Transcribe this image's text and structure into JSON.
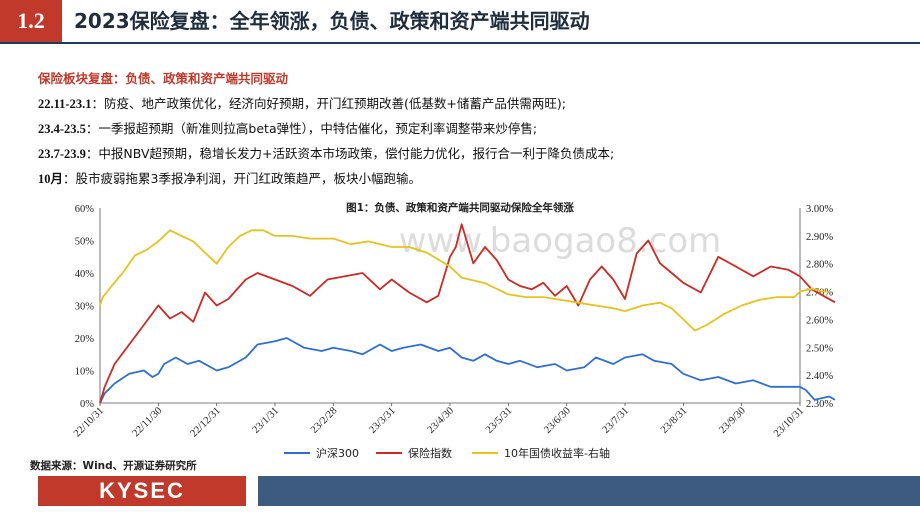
{
  "header": {
    "section_number": "1.2",
    "title": "2023保险复盘：全年领涨，负债、政策和资产端共同驱动"
  },
  "intro": {
    "lead": "保险板块复盘：负债、政策和资产端共同驱动",
    "rows": [
      {
        "period": "22.11-23.1",
        "text": "：防疫、地产政策优化，经济向好预期，开门红预期改善(低基数+储蓄产品供需两旺);"
      },
      {
        "period": "23.4-23.5",
        "text": "：一季报超预期（新准则拉高beta弹性），中特估催化，预定利率调整带来炒停售;"
      },
      {
        "period": "23.7-23.9",
        "text": "：中报NBV超预期，稳增长发力+活跃资本市场政策，偿付能力优化，报行合一利于降负债成本;"
      },
      {
        "period": "10月",
        "text": "：股市疲弱拖累3季报净利润，开门红政策趋严，板块小幅跑输。"
      }
    ]
  },
  "watermark": "www.baogao8.com",
  "source": "数据来源：Wind、开源证券研究所",
  "footer": {
    "logo": "KYSEC"
  },
  "colors": {
    "hs300": "#2e6fd1",
    "insurance": "#cc2a22",
    "bond": "#e8c21a",
    "accent": "#c0392b",
    "navy": "#3d5a80"
  },
  "chart_data": {
    "type": "line",
    "title": "图1：负债、政策和资产端共同驱动保险全年领涨",
    "x_tick_labels": [
      "22/10/31",
      "22/11/30",
      "22/12/31",
      "23/1/31",
      "23/2/28",
      "23/3/31",
      "23/4/30",
      "23/5/31",
      "23/6/30",
      "23/7/31",
      "23/8/31",
      "23/9/30",
      "23/10/31"
    ],
    "y_left": {
      "ticks": [
        "0%",
        "10%",
        "20%",
        "30%",
        "40%",
        "50%",
        "60%"
      ],
      "range": [
        0,
        60
      ]
    },
    "y_right": {
      "ticks": [
        "2.30%",
        "2.40%",
        "2.50%",
        "2.60%",
        "2.70%",
        "2.80%",
        "2.90%",
        "3.00%"
      ],
      "range": [
        2.3,
        3.0
      ],
      "label": "右轴"
    },
    "legend": [
      "沪深300",
      "保险指数",
      "10年国债收益率-右轴"
    ],
    "legend_position": "bottom",
    "series": [
      {
        "name": "沪深300",
        "axis": "left",
        "x": [
          0,
          0.08,
          0.25,
          0.5,
          0.75,
          0.9,
          1,
          1.1,
          1.3,
          1.5,
          1.7,
          2,
          2.2,
          2.5,
          2.7,
          3,
          3.2,
          3.5,
          3.8,
          4,
          4.3,
          4.5,
          4.8,
          5,
          5.2,
          5.5,
          5.8,
          6,
          6.2,
          6.4,
          6.6,
          6.8,
          7,
          7.2,
          7.5,
          7.8,
          8,
          8.3,
          8.5,
          8.8,
          9,
          9.3,
          9.5,
          9.8,
          10,
          10.3,
          10.6,
          10.9,
          11.2,
          11.5,
          11.8,
          12,
          12.1,
          12.25,
          12.5,
          12.6
        ],
        "y": [
          0,
          3,
          6,
          9,
          10,
          8,
          9,
          12,
          14,
          12,
          13,
          10,
          11,
          14,
          18,
          19,
          20,
          17,
          16,
          17,
          16,
          15,
          18,
          16,
          17,
          18,
          16,
          17,
          14,
          13,
          15,
          13,
          12,
          13,
          11,
          12,
          10,
          11,
          14,
          12,
          14,
          15,
          13,
          12,
          9,
          7,
          8,
          6,
          7,
          5,
          5,
          5,
          4,
          1,
          2,
          1
        ]
      },
      {
        "name": "保险指数",
        "axis": "left",
        "x": [
          0,
          0.08,
          0.25,
          0.5,
          0.75,
          1,
          1.2,
          1.4,
          1.6,
          1.8,
          2,
          2.2,
          2.5,
          2.7,
          3,
          3.3,
          3.6,
          3.9,
          4.2,
          4.5,
          4.8,
          5,
          5.3,
          5.6,
          5.8,
          6,
          6.1,
          6.2,
          6.4,
          6.6,
          6.8,
          7,
          7.2,
          7.4,
          7.6,
          7.8,
          8,
          8.2,
          8.4,
          8.6,
          8.8,
          9,
          9.2,
          9.4,
          9.6,
          9.8,
          10,
          10.3,
          10.6,
          10.9,
          11.2,
          11.5,
          11.8,
          12,
          12.2,
          12.4,
          12.6
        ],
        "y": [
          0,
          5,
          12,
          18,
          24,
          30,
          26,
          28,
          25,
          34,
          30,
          32,
          38,
          40,
          38,
          36,
          33,
          38,
          39,
          40,
          35,
          38,
          34,
          31,
          33,
          45,
          48,
          55,
          43,
          48,
          44,
          38,
          36,
          35,
          37,
          33,
          36,
          30,
          38,
          42,
          38,
          32,
          46,
          50,
          43,
          40,
          37,
          34,
          45,
          42,
          39,
          42,
          41,
          39,
          35,
          33,
          31
        ]
      },
      {
        "name": "10年国债收益率-右轴",
        "axis": "right",
        "x": [
          0,
          0.05,
          0.2,
          0.4,
          0.6,
          0.8,
          1,
          1.2,
          1.4,
          1.6,
          1.8,
          2,
          2.2,
          2.4,
          2.6,
          2.8,
          3,
          3.3,
          3.6,
          4,
          4.3,
          4.6,
          5,
          5.3,
          5.6,
          6,
          6.2,
          6.4,
          6.6,
          6.8,
          7,
          7.3,
          7.6,
          7.9,
          8.2,
          8.5,
          8.8,
          9,
          9.3,
          9.6,
          9.8,
          10,
          10.2,
          10.4,
          10.7,
          11,
          11.3,
          11.6,
          11.9,
          12,
          12.2,
          12.4,
          12.5
        ],
        "y": [
          2.65,
          2.68,
          2.72,
          2.77,
          2.83,
          2.85,
          2.88,
          2.92,
          2.9,
          2.88,
          2.84,
          2.8,
          2.86,
          2.9,
          2.92,
          2.92,
          2.9,
          2.9,
          2.89,
          2.89,
          2.87,
          2.88,
          2.86,
          2.86,
          2.84,
          2.79,
          2.75,
          2.74,
          2.73,
          2.71,
          2.69,
          2.68,
          2.68,
          2.67,
          2.66,
          2.65,
          2.64,
          2.63,
          2.65,
          2.66,
          2.64,
          2.6,
          2.56,
          2.58,
          2.62,
          2.65,
          2.67,
          2.68,
          2.68,
          2.7,
          2.71,
          2.7,
          2.7
        ]
      }
    ]
  }
}
